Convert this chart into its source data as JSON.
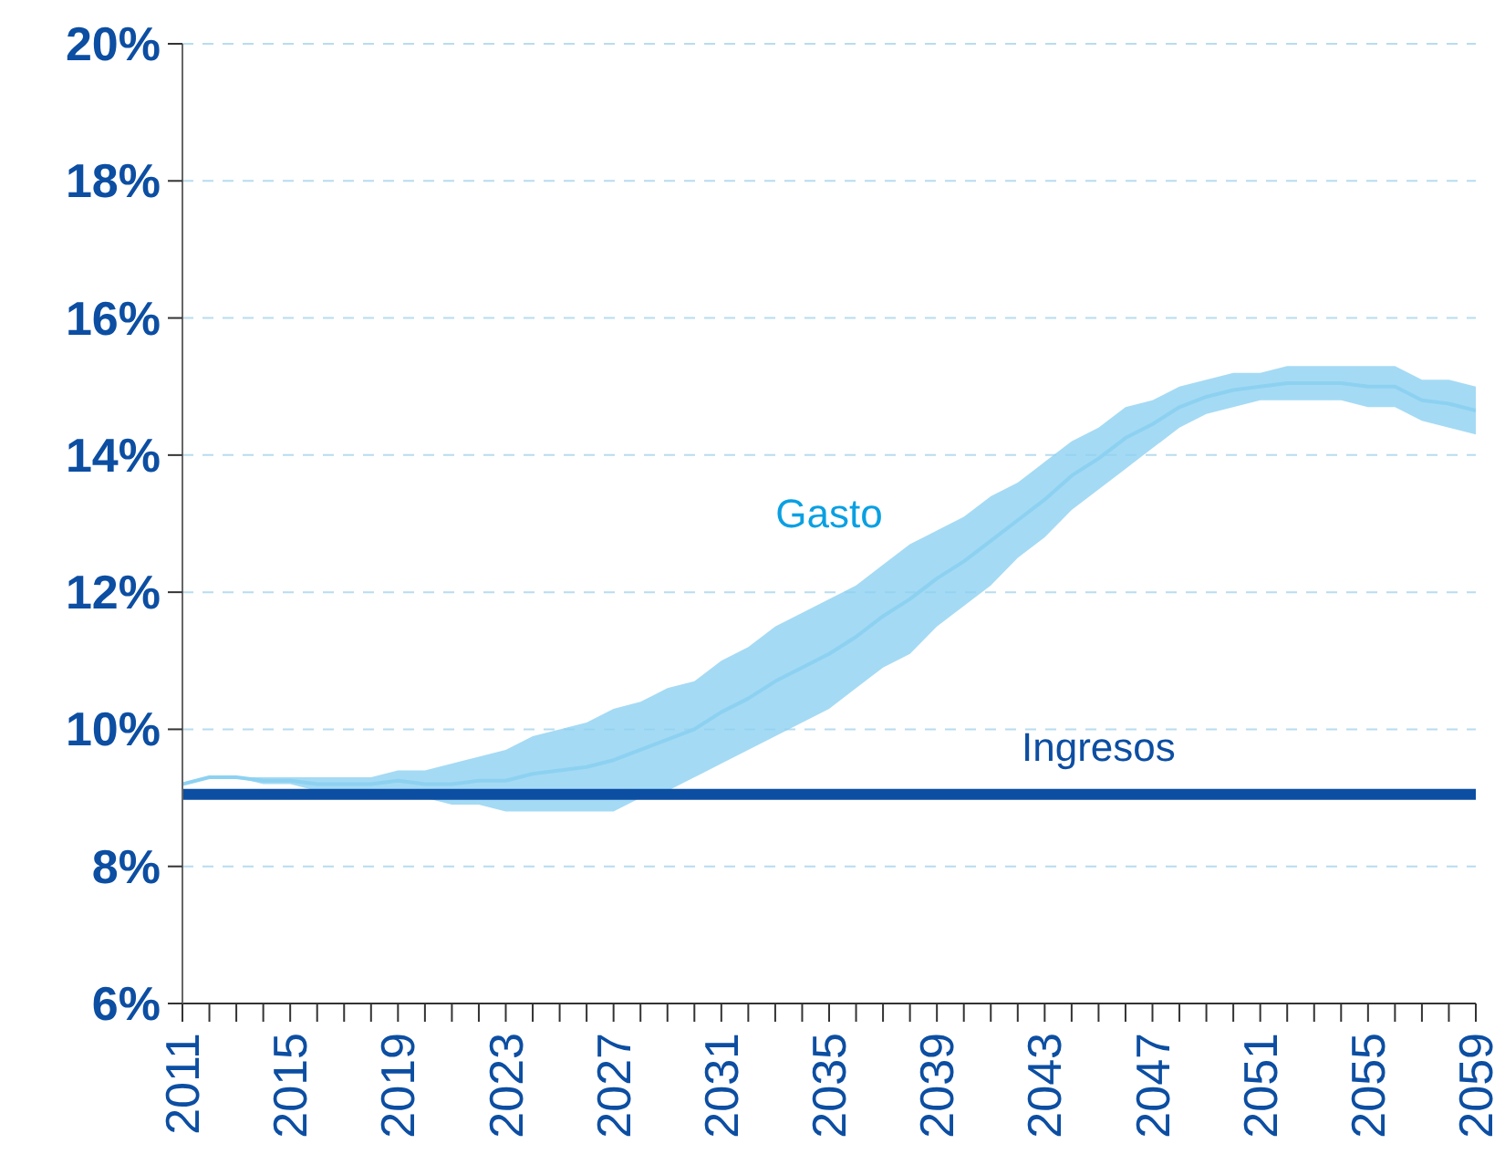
{
  "chart_data": {
    "type": "line",
    "x": [
      2011,
      2012,
      2013,
      2014,
      2015,
      2016,
      2017,
      2018,
      2019,
      2020,
      2021,
      2022,
      2023,
      2024,
      2025,
      2026,
      2027,
      2028,
      2029,
      2030,
      2031,
      2032,
      2033,
      2034,
      2035,
      2036,
      2037,
      2038,
      2039,
      2040,
      2041,
      2042,
      2043,
      2044,
      2045,
      2046,
      2047,
      2048,
      2049,
      2050,
      2051,
      2052,
      2053,
      2054,
      2055,
      2056,
      2057,
      2058,
      2059
    ],
    "series": [
      {
        "name": "Gasto",
        "color": "#8dd1f1",
        "values": [
          9.2,
          9.3,
          9.3,
          9.25,
          9.25,
          9.2,
          9.2,
          9.2,
          9.25,
          9.2,
          9.2,
          9.25,
          9.25,
          9.35,
          9.4,
          9.45,
          9.55,
          9.7,
          9.85,
          10.0,
          10.25,
          10.45,
          10.7,
          10.9,
          11.1,
          11.35,
          11.65,
          11.9,
          12.2,
          12.45,
          12.75,
          13.05,
          13.35,
          13.7,
          13.95,
          14.25,
          14.45,
          14.7,
          14.85,
          14.95,
          15.0,
          15.05,
          15.05,
          15.05,
          15.0,
          15.0,
          14.8,
          14.75,
          14.65
        ],
        "lower": [
          9.2,
          9.3,
          9.3,
          9.2,
          9.2,
          9.1,
          9.1,
          9.1,
          9.1,
          9.0,
          8.9,
          8.9,
          8.8,
          8.8,
          8.8,
          8.8,
          8.8,
          9.0,
          9.1,
          9.3,
          9.5,
          9.7,
          9.9,
          10.1,
          10.3,
          10.6,
          10.9,
          11.1,
          11.5,
          11.8,
          12.1,
          12.5,
          12.8,
          13.2,
          13.5,
          13.8,
          14.1,
          14.4,
          14.6,
          14.7,
          14.8,
          14.8,
          14.8,
          14.8,
          14.7,
          14.7,
          14.5,
          14.4,
          14.3
        ],
        "upper": [
          9.2,
          9.3,
          9.3,
          9.3,
          9.3,
          9.3,
          9.3,
          9.3,
          9.4,
          9.4,
          9.5,
          9.6,
          9.7,
          9.9,
          10.0,
          10.1,
          10.3,
          10.4,
          10.6,
          10.7,
          11.0,
          11.2,
          11.5,
          11.7,
          11.9,
          12.1,
          12.4,
          12.7,
          12.9,
          13.1,
          13.4,
          13.6,
          13.9,
          14.2,
          14.4,
          14.7,
          14.8,
          15.0,
          15.1,
          15.2,
          15.2,
          15.3,
          15.3,
          15.3,
          15.3,
          15.3,
          15.1,
          15.1,
          15.0
        ]
      },
      {
        "name": "Ingresos",
        "color": "#0c4ea2",
        "values": [
          9.05,
          9.05,
          9.05,
          9.05,
          9.05,
          9.05,
          9.05,
          9.05,
          9.05,
          9.05,
          9.05,
          9.05,
          9.05,
          9.05,
          9.05,
          9.05,
          9.05,
          9.05,
          9.05,
          9.05,
          9.05,
          9.05,
          9.05,
          9.05,
          9.05,
          9.05,
          9.05,
          9.05,
          9.05,
          9.05,
          9.05,
          9.05,
          9.05,
          9.05,
          9.05,
          9.05,
          9.05,
          9.05,
          9.05,
          9.05,
          9.05,
          9.05,
          9.05,
          9.05,
          9.05,
          9.05,
          9.05,
          9.05,
          9.05
        ]
      }
    ],
    "xlim": [
      2011,
      2059
    ],
    "xticks": [
      2011,
      {
        "value": 2012,
        "label": null
      },
      {
        "value": 2013,
        "label": null
      },
      {
        "value": 2014,
        "label": null
      },
      2015,
      {
        "value": 2016,
        "label": null
      },
      {
        "value": 2017,
        "label": null
      },
      {
        "value": 2018,
        "label": null
      },
      2019,
      {
        "value": 2020,
        "label": null
      },
      {
        "value": 2021,
        "label": null
      },
      {
        "value": 2022,
        "label": null
      },
      2023,
      {
        "value": 2024,
        "label": null
      },
      {
        "value": 2025,
        "label": null
      },
      {
        "value": 2026,
        "label": null
      },
      2027,
      {
        "value": 2028,
        "label": null
      },
      {
        "value": 2029,
        "label": null
      },
      {
        "value": 2030,
        "label": null
      },
      2031,
      {
        "value": 2032,
        "label": null
      },
      {
        "value": 2033,
        "label": null
      },
      {
        "value": 2034,
        "label": null
      },
      2035,
      {
        "value": 2036,
        "label": null
      },
      {
        "value": 2037,
        "label": null
      },
      {
        "value": 2038,
        "label": null
      },
      2039,
      {
        "value": 2040,
        "label": null
      },
      {
        "value": 2041,
        "label": null
      },
      {
        "value": 2042,
        "label": null
      },
      2043,
      {
        "value": 2044,
        "label": null
      },
      {
        "value": 2045,
        "label": null
      },
      {
        "value": 2046,
        "label": null
      },
      2047,
      {
        "value": 2048,
        "label": null
      },
      {
        "value": 2049,
        "label": null
      },
      {
        "value": 2050,
        "label": null
      },
      2051,
      {
        "value": 2052,
        "label": null
      },
      {
        "value": 2053,
        "label": null
      },
      {
        "value": 2054,
        "label": null
      },
      2055,
      {
        "value": 2056,
        "label": null
      },
      {
        "value": 2057,
        "label": null
      },
      {
        "value": 2058,
        "label": null
      },
      2059
    ],
    "ylim": [
      6,
      20
    ],
    "yticks": [
      {
        "value": 6,
        "label": "6%"
      },
      {
        "value": 8,
        "label": "8%"
      },
      {
        "value": 10,
        "label": "10%"
      },
      {
        "value": 12,
        "label": "12%"
      },
      {
        "value": 14,
        "label": "14%"
      },
      {
        "value": 16,
        "label": "16%"
      },
      {
        "value": 18,
        "label": "18%"
      },
      {
        "value": 20,
        "label": "20%"
      }
    ],
    "grid": "y",
    "legend": false,
    "marker": "none",
    "line_style": "solid"
  }
}
